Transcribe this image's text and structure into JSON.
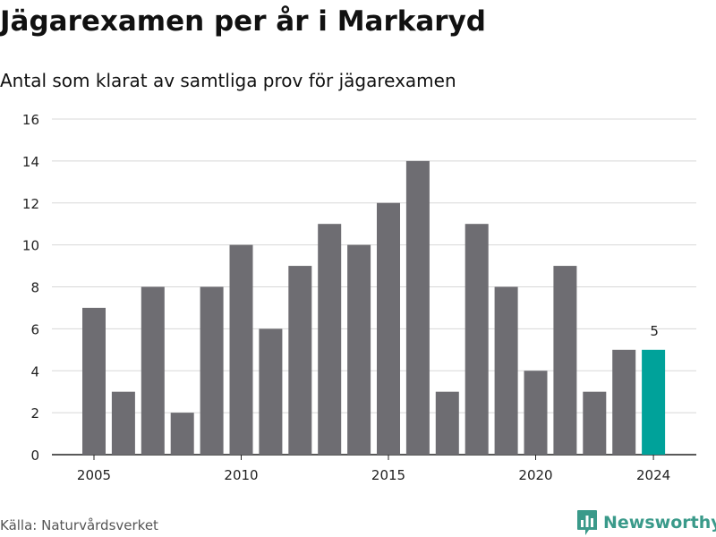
{
  "title": "Jägarexamen per år i Markaryd",
  "subtitle": "Antal som klarat av samtliga prov för jägarexamen",
  "source": "Källa: Naturvårdsverket",
  "brand": {
    "name": "Newsworthy",
    "icon": "bar-chart-logo-icon",
    "color": "#3a9a8a"
  },
  "colors": {
    "bar": "#6e6d72",
    "highlight": "#00a29a",
    "grid": "#d8d8d8"
  },
  "chart_data": {
    "type": "bar",
    "title": "Jägarexamen per år i Markaryd",
    "subtitle": "Antal som klarat av samtliga prov för jägarexamen",
    "categories": [
      2005,
      2006,
      2007,
      2008,
      2009,
      2010,
      2011,
      2012,
      2013,
      2014,
      2015,
      2016,
      2017,
      2018,
      2019,
      2020,
      2021,
      2022,
      2023,
      2024
    ],
    "values": [
      7,
      3,
      8,
      2,
      8,
      10,
      6,
      9,
      11,
      10,
      12,
      14,
      3,
      11,
      8,
      4,
      9,
      3,
      5,
      5
    ],
    "x_ticks": [
      "2005",
      "2010",
      "2015",
      "2020",
      "2024"
    ],
    "y_ticks": [
      0,
      2,
      4,
      6,
      8,
      10,
      12,
      14,
      16
    ],
    "ylim": [
      0,
      16
    ],
    "grid": true,
    "highlight": {
      "category": 2024,
      "label": "5"
    }
  }
}
